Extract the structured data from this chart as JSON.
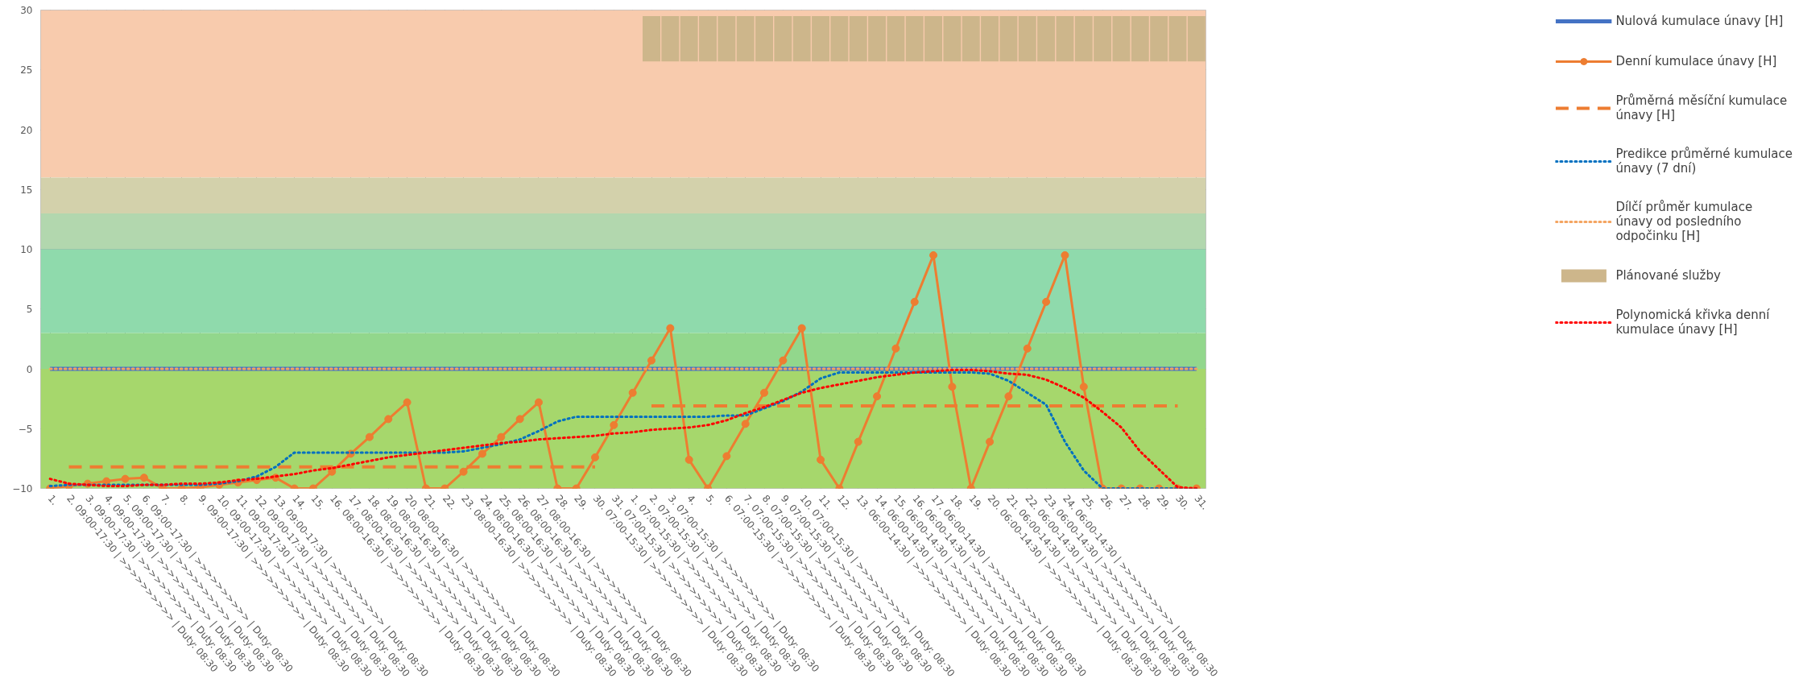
{
  "chart_data": {
    "type": "line",
    "categories": [
      "1.",
      "2. 09:00-17:30 | >>>>>>>>>> | Duty: 08:30",
      "3. 09:00-17:30 | >>>>>>>>>> | Duty: 08:30",
      "4. 09:00-17:30 | >>>>>>>>>> | Duty: 08:30",
      "5. 09:00-17:30 | >>>>>>>>>> | Duty: 08:30",
      "6. 09:00-17:30 | >>>>>>>>>> | Duty: 08:30",
      "7.",
      "8.",
      "9. 09:00-17:30 | >>>>>>>>>> | Duty: 08:30",
      "10. 09:00-17:30 | >>>>>>>>>> | Duty: 08:30",
      "11. 09:00-17:30 | >>>>>>>>>> | Duty: 08:30",
      "12. 09:00-17:30 | >>>>>>>>>> | Duty: 08:30",
      "13. 09:00-17:30 | >>>>>>>>>> | Duty: 08:30",
      "14.",
      "15.",
      "16. 08:00-16:30 | >>>>>>>>>> | Duty: 08:30",
      "17. 08:00-16:30 | >>>>>>>>>> | Duty: 08:30",
      "18. 08:00-16:30 | >>>>>>>>>> | Duty: 08:30",
      "19. 08:00-16:30 | >>>>>>>>>> | Duty: 08:30",
      "20. 08:00-16:30 | >>>>>>>>>> | Duty: 08:30",
      "21.",
      "22.",
      "23. 08:00-16:30 | >>>>>>>>>> | Duty: 08:30",
      "24. 08:00-16:30 | >>>>>>>>>> | Duty: 08:30",
      "25. 08:00-16:30 | >>>>>>>>>> | Duty: 08:30",
      "26. 08:00-16:30 | >>>>>>>>>> | Duty: 08:30",
      "27. 08:00-16:30 | >>>>>>>>>> | Duty: 08:30",
      "28.",
      "29.",
      "30. 07:00-15:30 | >>>>>>>>>> | Duty: 08:30",
      "31. 07:00-15:30 | >>>>>>>>>> | Duty: 08:30",
      "1. 07:00-15:30 | >>>>>>>>>> | Duty: 08:30",
      "2. 07:00-15:30 | >>>>>>>>>> | Duty: 08:30",
      "3. 07:00-15:30 | >>>>>>>>>> | Duty: 08:30",
      "4.",
      "5.",
      "6. 07:00-15:30 | >>>>>>>>>> | Duty: 08:30",
      "7. 07:00-15:30 | >>>>>>>>>> | Duty: 08:30",
      "8. 07:00-15:30 | >>>>>>>>>> | Duty: 08:30",
      "9. 07:00-15:30 | >>>>>>>>>> | Duty: 08:30",
      "10. 07:00-15:30 | >>>>>>>>>> | Duty: 08:30",
      "11.",
      "12.",
      "13. 06:00-14:30 | >>>>>>>>>> | Duty: 08:30",
      "14. 06:00-14:30 | >>>>>>>>>> | Duty: 08:30",
      "15. 06:00-14:30 | >>>>>>>>>> | Duty: 08:30",
      "16. 06:00-14:30 | >>>>>>>>>> | Duty: 08:30",
      "17. 06:00-14:30 | >>>>>>>>>> | Duty: 08:30",
      "18.",
      "19.",
      "20. 06:00-14:30 | >>>>>>>>>> | Duty: 08:30",
      "21. 06:00-14:30 | >>>>>>>>>> | Duty: 08:30",
      "22. 06:00-14:30 | >>>>>>>>>> | Duty: 08:30",
      "23. 06:00-14:30 | >>>>>>>>>> | Duty: 08:30",
      "24. 06:00-14:30 | >>>>>>>>>> | Duty: 08:30",
      "25.",
      "26.",
      "27.",
      "28.",
      "29.",
      "30.",
      "31."
    ],
    "ylim": [
      -10,
      30
    ],
    "yticks": [
      -10,
      -5,
      0,
      5,
      10,
      15,
      20,
      25,
      30
    ],
    "grid": true,
    "legend": "right",
    "bands": [
      {
        "axis": "y",
        "from": 16,
        "to": 30,
        "color": "#f8cbad"
      },
      {
        "axis": "y",
        "from": 13,
        "to": 16,
        "color": "#d3d1ab"
      },
      {
        "axis": "y",
        "from": 10,
        "to": 13,
        "color": "#b2d7ae"
      },
      {
        "axis": "y",
        "from": 3,
        "to": 10,
        "color": "#8fdaac"
      },
      {
        "axis": "y",
        "from": 0,
        "to": 3,
        "color": "#92d78c"
      },
      {
        "axis": "y",
        "from": -10,
        "to": 0,
        "color": "#a6d76c"
      }
    ],
    "series": [
      {
        "name": "Nulová kumulace únavy [H]",
        "line_style": "solid",
        "color": "#4472c4",
        "values": [
          0,
          0,
          0,
          0,
          0,
          0,
          0,
          0,
          0,
          0,
          0,
          0,
          0,
          0,
          0,
          0,
          0,
          0,
          0,
          0,
          0,
          0,
          0,
          0,
          0,
          0,
          0,
          0,
          0,
          0,
          0,
          0,
          0,
          0,
          0,
          0,
          0,
          0,
          0,
          0,
          0,
          0,
          0,
          0,
          0,
          0,
          0,
          0,
          0,
          0,
          0,
          0,
          0,
          0,
          0,
          0,
          0,
          0,
          0,
          0,
          0,
          0
        ]
      },
      {
        "name": "Denní kumulace únavy [H]",
        "line_style": "solid",
        "marker": "circle",
        "color": "#ed7d31",
        "values": [
          -10,
          -9.8,
          -9.6,
          -9.4,
          -9.2,
          -9.1,
          -10,
          -10,
          -9.9,
          -9.7,
          -9.5,
          -9.3,
          -9.1,
          -10,
          -10,
          -8.6,
          -7.1,
          -5.7,
          -4.2,
          -2.8,
          -10,
          -10,
          -8.6,
          -7.1,
          -5.7,
          -4.2,
          -2.8,
          -10,
          -10,
          -7.4,
          -4.7,
          -2.0,
          0.7,
          3.4,
          -7.6,
          -10,
          -7.3,
          -4.6,
          -2.0,
          0.7,
          3.4,
          -7.6,
          -10,
          -6.1,
          -2.3,
          1.7,
          5.6,
          9.5,
          -1.5,
          -10,
          -6.1,
          -2.3,
          1.7,
          5.6,
          9.5,
          -1.5,
          -10,
          -10,
          -10,
          -10,
          -10,
          -10
        ]
      },
      {
        "name": "Průměrná měsíční kumulace únavy [H]",
        "line_style": "dashed",
        "color": "#ed7d31",
        "values": [
          null,
          -8.2,
          -8.2,
          -8.2,
          -8.2,
          -8.2,
          -8.2,
          -8.2,
          -8.2,
          -8.2,
          -8.2,
          -8.2,
          -8.2,
          -8.2,
          -8.2,
          -8.2,
          -8.2,
          -8.2,
          -8.2,
          -8.2,
          -8.2,
          -8.2,
          -8.2,
          -8.2,
          -8.2,
          -8.2,
          -8.2,
          -8.2,
          -8.2,
          -8.2,
          null,
          null,
          -3.1,
          -3.1,
          -3.1,
          -3.1,
          -3.1,
          -3.1,
          -3.1,
          -3.1,
          -3.1,
          -3.1,
          -3.1,
          -3.1,
          -3.1,
          -3.1,
          -3.1,
          -3.1,
          -3.1,
          -3.1,
          -3.1,
          -3.1,
          -3.1,
          -3.1,
          -3.1,
          -3.1,
          -3.1,
          -3.1,
          -3.1,
          -3.1,
          -3.1,
          null
        ]
      },
      {
        "name": "Predikce průměrné kumulace únavy (7 dní)",
        "line_style": "dotted",
        "color": "#0070c0",
        "values": [
          -9.8,
          -9.7,
          -9.7,
          -9.7,
          -9.7,
          -9.7,
          -9.7,
          -9.7,
          -9.7,
          -9.6,
          -9.4,
          -9.0,
          -8.2,
          -7.0,
          -7.0,
          -7.0,
          -7.0,
          -7.0,
          -7.0,
          -7.0,
          -7.0,
          -7.0,
          -6.9,
          -6.6,
          -6.3,
          -5.9,
          -5.2,
          -4.4,
          -4.0,
          -4.0,
          -4.0,
          -4.0,
          -4.0,
          -4.0,
          -4.0,
          -4.0,
          -3.9,
          -3.9,
          -3.3,
          -2.7,
          -1.9,
          -0.8,
          -0.3,
          -0.3,
          -0.3,
          -0.3,
          -0.3,
          -0.3,
          -0.3,
          -0.3,
          -0.4,
          -1.0,
          -2.0,
          -3.0,
          -6.1,
          -8.5,
          -10,
          -10,
          -10,
          -10,
          -10,
          -10
        ]
      },
      {
        "name": "Dílčí průměr kumulace únavy od posledního odpočinku [H]",
        "line_style": "dotted",
        "color": "#f4a460",
        "values": [
          0,
          0,
          0,
          0,
          0,
          0,
          0,
          0,
          0,
          0,
          0,
          0,
          0,
          0,
          0,
          0,
          0,
          0,
          0,
          0,
          0,
          0,
          0,
          0,
          0,
          0,
          0,
          0,
          0,
          0,
          0,
          0,
          0,
          0,
          0,
          0,
          0,
          0,
          0,
          0,
          0,
          0,
          0,
          0,
          0,
          0,
          0,
          0,
          0,
          0,
          0,
          0,
          0,
          0,
          0,
          0,
          0,
          0,
          0,
          0,
          0,
          0
        ]
      },
      {
        "name": "Plánované služby",
        "type": "bar",
        "color": "#cdb68b",
        "base": [
          null,
          null,
          null,
          null,
          null,
          null,
          null,
          null,
          null,
          null,
          null,
          null,
          null,
          null,
          null,
          null,
          null,
          null,
          null,
          null,
          null,
          null,
          null,
          null,
          null,
          null,
          null,
          null,
          null,
          null,
          null,
          null,
          25.7,
          25.7,
          25.7,
          25.7,
          25.7,
          25.7,
          25.7,
          25.7,
          25.7,
          25.7,
          25.7,
          25.7,
          25.7,
          25.7,
          25.7,
          25.7,
          25.7,
          25.7,
          25.7,
          25.7,
          25.7,
          25.7,
          25.7,
          25.7,
          25.7,
          25.7,
          25.7,
          25.7,
          25.7,
          25.7
        ],
        "values": [
          null,
          null,
          null,
          null,
          null,
          null,
          null,
          null,
          null,
          null,
          null,
          null,
          null,
          null,
          null,
          null,
          null,
          null,
          null,
          null,
          null,
          null,
          null,
          null,
          null,
          null,
          null,
          null,
          null,
          null,
          null,
          null,
          3.8,
          3.8,
          3.8,
          3.8,
          3.8,
          3.8,
          3.8,
          3.8,
          3.8,
          3.8,
          3.8,
          3.8,
          3.8,
          3.8,
          3.8,
          3.8,
          3.8,
          3.8,
          3.8,
          3.8,
          3.8,
          3.8,
          3.8,
          3.8,
          3.8,
          3.8,
          3.8,
          3.8,
          3.8,
          3.8
        ]
      },
      {
        "name": "Polynomická křivka denní kumulace únavy [H]",
        "line_style": "dotted",
        "color": "#ff0000",
        "values": [
          -9.2,
          -9.6,
          -9.7,
          -9.8,
          -9.8,
          -9.7,
          -9.7,
          -9.6,
          -9.6,
          -9.5,
          -9.3,
          -9.2,
          -9.0,
          -8.8,
          -8.5,
          -8.3,
          -8.0,
          -7.7,
          -7.4,
          -7.2,
          -7.0,
          -6.8,
          -6.6,
          -6.4,
          -6.2,
          -6.1,
          -5.9,
          -5.8,
          -5.7,
          -5.6,
          -5.4,
          -5.3,
          -5.1,
          -5.0,
          -4.9,
          -4.7,
          -4.3,
          -3.7,
          -3.2,
          -2.6,
          -2.0,
          -1.6,
          -1.3,
          -1.0,
          -0.7,
          -0.5,
          -0.3,
          -0.2,
          -0.1,
          -0.1,
          -0.2,
          -0.4,
          -0.5,
          -0.9,
          -1.6,
          -2.4,
          -3.6,
          -4.9,
          -6.9,
          -8.4,
          -9.9,
          -10
        ]
      }
    ]
  }
}
